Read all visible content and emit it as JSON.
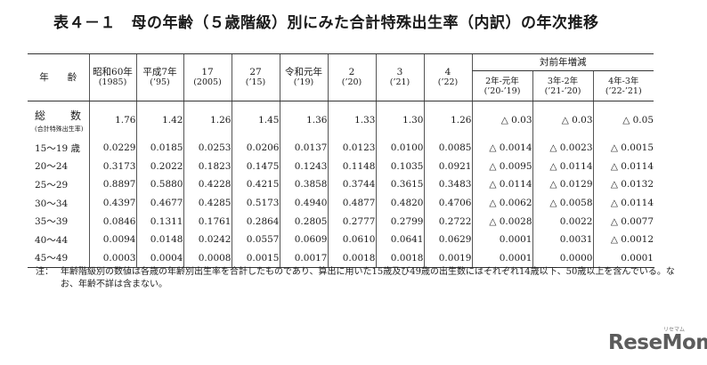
{
  "title": "表４－１　母の年齢（５歳階級）別にみた合計特殊出生率（内訳）の年次推移",
  "table": {
    "age_header": "年　　齢",
    "columns": [
      {
        "label": "昭和60年",
        "sub": "(1985)"
      },
      {
        "label": "平成7年",
        "sub": "(’95)"
      },
      {
        "label": "17",
        "sub": "(2005)"
      },
      {
        "label": "27",
        "sub": "(’15)"
      },
      {
        "label": "令和元年",
        "sub": "(’19)"
      },
      {
        "label": "2",
        "sub": "(’20)"
      },
      {
        "label": "3",
        "sub": "(’21)"
      },
      {
        "label": "4",
        "sub": "(’22)"
      }
    ],
    "change_header": "対前年増減",
    "change_columns": [
      {
        "label": "2年-元年",
        "sub": "(’20-’19)"
      },
      {
        "label": "3年-2年",
        "sub": "(’21-’20)"
      },
      {
        "label": "4年-3年",
        "sub": "(’22-’21)"
      }
    ],
    "total_label": "総　数",
    "total_sublabel": "(合計特殊出生率)",
    "total_values": [
      "1.76",
      "1.42",
      "1.26",
      "1.45",
      "1.36",
      "1.33",
      "1.30",
      "1.26"
    ],
    "total_changes": [
      "△ 0.03",
      "△ 0.03",
      "△ 0.05"
    ],
    "rows": [
      {
        "age": "15～19 歳",
        "values": [
          "0.0229",
          "0.0185",
          "0.0253",
          "0.0206",
          "0.0137",
          "0.0123",
          "0.0100",
          "0.0085"
        ],
        "changes": [
          "△ 0.0014",
          "△ 0.0023",
          "△ 0.0015"
        ]
      },
      {
        "age": "20～24",
        "values": [
          "0.3173",
          "0.2022",
          "0.1823",
          "0.1475",
          "0.1243",
          "0.1148",
          "0.1035",
          "0.0921"
        ],
        "changes": [
          "△ 0.0095",
          "△ 0.0114",
          "△ 0.0114"
        ]
      },
      {
        "age": "25～29",
        "values": [
          "0.8897",
          "0.5880",
          "0.4228",
          "0.4215",
          "0.3858",
          "0.3744",
          "0.3615",
          "0.3483"
        ],
        "changes": [
          "△ 0.0114",
          "△ 0.0129",
          "△ 0.0132"
        ]
      },
      {
        "age": "30～34",
        "values": [
          "0.4397",
          "0.4677",
          "0.4285",
          "0.5173",
          "0.4940",
          "0.4877",
          "0.4820",
          "0.4706"
        ],
        "changes": [
          "△ 0.0062",
          "△ 0.0058",
          "△ 0.0114"
        ]
      },
      {
        "age": "35～39",
        "values": [
          "0.0846",
          "0.1311",
          "0.1761",
          "0.2864",
          "0.2805",
          "0.2777",
          "0.2799",
          "0.2722"
        ],
        "changes": [
          "△ 0.0028",
          "0.0022",
          "△ 0.0077"
        ]
      },
      {
        "age": "40～44",
        "values": [
          "0.0094",
          "0.0148",
          "0.0242",
          "0.0557",
          "0.0609",
          "0.0610",
          "0.0641",
          "0.0629"
        ],
        "changes": [
          "0.0001",
          "0.0031",
          "△ 0.0012"
        ]
      },
      {
        "age": "45～49",
        "values": [
          "0.0003",
          "0.0004",
          "0.0008",
          "0.0015",
          "0.0017",
          "0.0018",
          "0.0018",
          "0.0019"
        ],
        "changes": [
          "0.0001",
          "0.0000",
          "0.0001"
        ]
      }
    ]
  },
  "note": {
    "prefix": "注：",
    "text": "年齢階級別の数値は各歳の年齢別出生率を合計したものであり、算出に用いた15歳及び49歳の出生数にはそれぞれ14歳以下、50歳以上を含んでいる。なお、年齢不詳は含まない。"
  },
  "logo": {
    "text": "ReseMom",
    "tag": "リセマム"
  }
}
